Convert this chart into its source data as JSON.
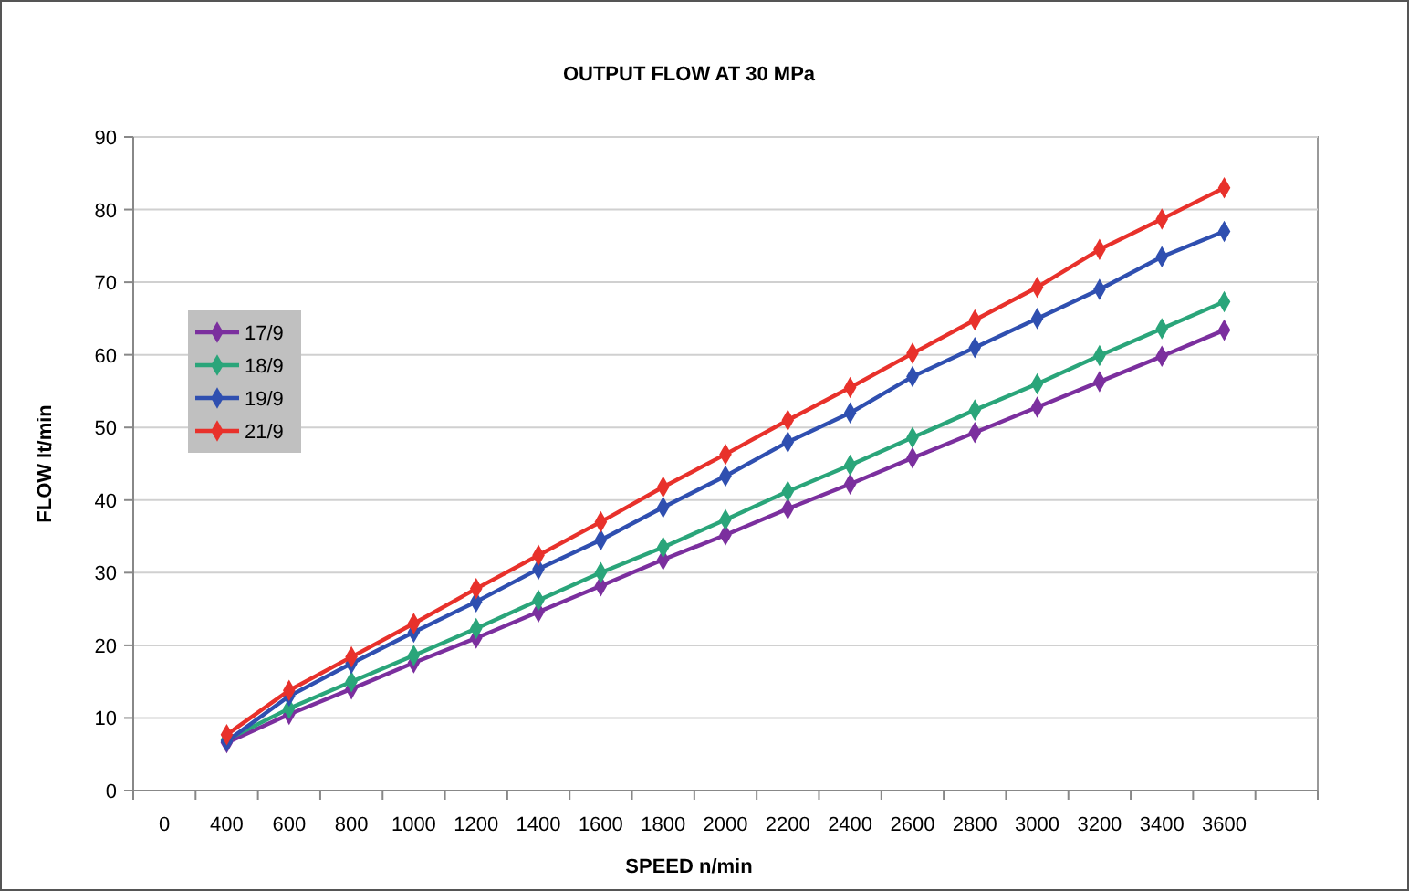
{
  "chart_data": {
    "type": "line",
    "title": "OUTPUT FLOW AT 30 MPa",
    "xlabel": "SPEED n/min",
    "ylabel": "FLOW lt/min",
    "categories": [
      "0",
      "400",
      "600",
      "800",
      "1000",
      "1200",
      "1400",
      "1600",
      "1800",
      "2000",
      "2200",
      "2400",
      "2600",
      "2800",
      "3000",
      "3200",
      "3400",
      "3600",
      null
    ],
    "series": [
      {
        "name": "17/9",
        "color": "#7b2f9e",
        "values": [
          null,
          6.6,
          10.5,
          14,
          17.6,
          21,
          24.6,
          28.2,
          31.8,
          35.2,
          38.8,
          42.2,
          45.8,
          49.3,
          52.8,
          56.3,
          59.8,
          63.4,
          null
        ]
      },
      {
        "name": "18/9",
        "color": "#2aa57a",
        "values": [
          null,
          7,
          11.3,
          15,
          18.6,
          22.3,
          26.2,
          30,
          33.5,
          37.3,
          41.2,
          44.8,
          48.6,
          52.4,
          56,
          59.9,
          63.6,
          67.3,
          null
        ]
      },
      {
        "name": "19/9",
        "color": "#2f4fb0",
        "values": [
          null,
          6.8,
          13,
          17.5,
          21.8,
          26,
          30.5,
          34.5,
          39,
          43.3,
          48,
          52,
          57,
          61,
          65,
          69,
          73.5,
          77,
          null
        ]
      },
      {
        "name": "21/9",
        "color": "#e8312b",
        "values": [
          null,
          7.7,
          13.8,
          18.4,
          23,
          27.8,
          32.4,
          37,
          41.8,
          46.3,
          51,
          55.5,
          60.2,
          64.8,
          69.3,
          74.5,
          78.7,
          83,
          null
        ]
      }
    ],
    "ylim": [
      0,
      90
    ],
    "yticks": [
      0,
      10,
      20,
      30,
      40,
      50,
      60,
      70,
      80,
      90
    ],
    "grid": "y",
    "legend": "left",
    "marker": "diamond",
    "line_style": "solid"
  }
}
